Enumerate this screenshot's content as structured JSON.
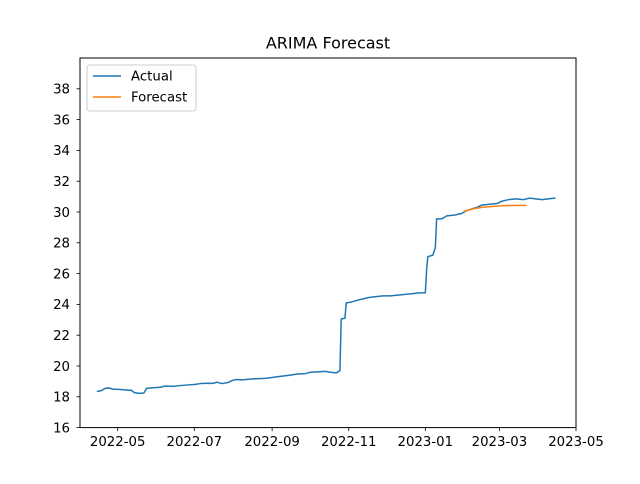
{
  "chart_data": {
    "type": "line",
    "title": "ARIMA Forecast",
    "xlabel": "",
    "ylabel": "",
    "x_axis": "date",
    "xlim": [
      "2022-04-01",
      "2023-05-01"
    ],
    "ylim": [
      16,
      40
    ],
    "x_ticks": [
      "2022-05",
      "2022-07",
      "2022-09",
      "2022-11",
      "2023-01",
      "2023-03",
      "2023-05"
    ],
    "y_ticks": [
      16,
      18,
      20,
      22,
      24,
      26,
      28,
      30,
      32,
      34,
      36,
      38
    ],
    "grid": false,
    "legend": "upper left",
    "series": [
      {
        "name": "Actual",
        "color": "#1f77b4",
        "points": [
          [
            "2022-04-15",
            18.35
          ],
          [
            "2022-04-18",
            18.4
          ],
          [
            "2022-04-21",
            18.55
          ],
          [
            "2022-04-24",
            18.58
          ],
          [
            "2022-04-27",
            18.5
          ],
          [
            "2022-05-02",
            18.48
          ],
          [
            "2022-05-07",
            18.45
          ],
          [
            "2022-05-12",
            18.42
          ],
          [
            "2022-05-14",
            18.28
          ],
          [
            "2022-05-18",
            18.22
          ],
          [
            "2022-05-22",
            18.25
          ],
          [
            "2022-05-24",
            18.55
          ],
          [
            "2022-05-28",
            18.58
          ],
          [
            "2022-06-04",
            18.62
          ],
          [
            "2022-06-08",
            18.7
          ],
          [
            "2022-06-14",
            18.68
          ],
          [
            "2022-06-20",
            18.73
          ],
          [
            "2022-06-26",
            18.77
          ],
          [
            "2022-07-01",
            18.8
          ],
          [
            "2022-07-06",
            18.86
          ],
          [
            "2022-07-12",
            18.88
          ],
          [
            "2022-07-16",
            18.87
          ],
          [
            "2022-07-19",
            18.95
          ],
          [
            "2022-07-23",
            18.86
          ],
          [
            "2022-07-28",
            18.93
          ],
          [
            "2022-07-31",
            19.05
          ],
          [
            "2022-08-03",
            19.12
          ],
          [
            "2022-08-08",
            19.1
          ],
          [
            "2022-08-14",
            19.15
          ],
          [
            "2022-08-20",
            19.17
          ],
          [
            "2022-08-26",
            19.2
          ],
          [
            "2022-09-01",
            19.25
          ],
          [
            "2022-09-05",
            19.3
          ],
          [
            "2022-09-10",
            19.35
          ],
          [
            "2022-09-15",
            19.4
          ],
          [
            "2022-09-21",
            19.48
          ],
          [
            "2022-09-27",
            19.5
          ],
          [
            "2022-10-02",
            19.6
          ],
          [
            "2022-10-07",
            19.62
          ],
          [
            "2022-10-13",
            19.65
          ],
          [
            "2022-10-17",
            19.6
          ],
          [
            "2022-10-22",
            19.55
          ],
          [
            "2022-10-25",
            19.7
          ],
          [
            "2022-10-26",
            23.05
          ],
          [
            "2022-10-29",
            23.1
          ],
          [
            "2022-10-30",
            24.1
          ],
          [
            "2022-11-03",
            24.15
          ],
          [
            "2022-11-07",
            24.25
          ],
          [
            "2022-11-12",
            24.35
          ],
          [
            "2022-11-17",
            24.45
          ],
          [
            "2022-11-22",
            24.5
          ],
          [
            "2022-11-28",
            24.55
          ],
          [
            "2022-12-04",
            24.55
          ],
          [
            "2022-12-10",
            24.6
          ],
          [
            "2022-12-16",
            24.65
          ],
          [
            "2022-12-22",
            24.7
          ],
          [
            "2022-12-27",
            24.75
          ],
          [
            "2023-01-01",
            24.75
          ],
          [
            "2023-01-02",
            26.2
          ],
          [
            "2023-01-03",
            27.1
          ],
          [
            "2023-01-07",
            27.2
          ],
          [
            "2023-01-09",
            27.7
          ],
          [
            "2023-01-10",
            29.55
          ],
          [
            "2023-01-14",
            29.55
          ],
          [
            "2023-01-18",
            29.75
          ],
          [
            "2023-01-24",
            29.8
          ],
          [
            "2023-01-30",
            29.9
          ],
          [
            "2023-02-03",
            30.1
          ],
          [
            "2023-02-07",
            30.2
          ],
          [
            "2023-02-11",
            30.3
          ],
          [
            "2023-02-15",
            30.45
          ],
          [
            "2023-02-21",
            30.5
          ],
          [
            "2023-02-27",
            30.55
          ],
          [
            "2023-03-03",
            30.7
          ],
          [
            "2023-03-08",
            30.8
          ],
          [
            "2023-03-14",
            30.85
          ],
          [
            "2023-03-20",
            30.8
          ],
          [
            "2023-03-25",
            30.9
          ],
          [
            "2023-03-30",
            30.85
          ],
          [
            "2023-04-04",
            30.8
          ],
          [
            "2023-04-09",
            30.85
          ],
          [
            "2023-04-14",
            30.9
          ]
        ]
      },
      {
        "name": "Forecast",
        "color": "#ff7f0e",
        "points": [
          [
            "2023-02-01",
            30.05
          ],
          [
            "2023-02-08",
            30.2
          ],
          [
            "2023-02-15",
            30.3
          ],
          [
            "2023-02-22",
            30.35
          ],
          [
            "2023-03-01",
            30.4
          ],
          [
            "2023-03-08",
            30.42
          ],
          [
            "2023-03-15",
            30.43
          ],
          [
            "2023-03-22",
            30.43
          ]
        ]
      }
    ]
  }
}
